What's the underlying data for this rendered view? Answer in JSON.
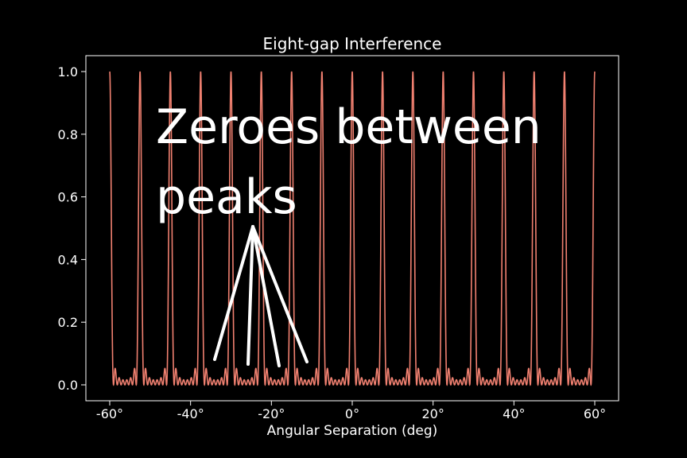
{
  "chart_data": {
    "type": "line",
    "title": "Eight-gap Interference",
    "xlabel": "Angular Separation (deg)",
    "ylabel": "",
    "xlim": [
      -60,
      60
    ],
    "ylim": [
      0,
      1
    ],
    "xticks": [
      -60,
      -40,
      -20,
      0,
      20,
      40,
      60
    ],
    "xtick_labels": [
      "-60°",
      "-40°",
      "-20°",
      "0°",
      "20°",
      "40°",
      "60°"
    ],
    "yticks": [
      0.0,
      0.2,
      0.4,
      0.6,
      0.8,
      1.0
    ],
    "ytick_labels": [
      "0.0",
      "0.2",
      "0.4",
      "0.6",
      "0.8",
      "1.0"
    ],
    "grid": false,
    "legend": "none",
    "series": [
      {
        "gaps": 8,
        "principal_peaks_deg": [
          -60,
          -52.5,
          -45,
          -37.5,
          -30,
          -22.5,
          -15,
          -7.5,
          0,
          7.5,
          15,
          22.5,
          30,
          37.5,
          45,
          52.5,
          60
        ],
        "peak_value": 1.0,
        "secondary_max_value": 0.05,
        "color": "#f08070"
      }
    ],
    "annotation": {
      "lines": [
        "Zeroes between",
        "peaks"
      ],
      "pointer_color": "#ffffff"
    },
    "colors": {
      "background": "#000000",
      "axes": "#ffffff",
      "text": "#ffffff"
    }
  }
}
